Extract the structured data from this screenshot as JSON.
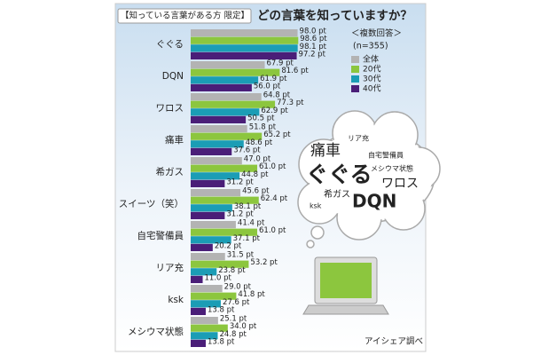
{
  "chart_data": {
    "type": "bar",
    "orientation": "horizontal",
    "subtitle": "【知っている言葉がある方 限定】",
    "title": "どの言葉を知っていますか？",
    "notes": [
      "＜複数回答＞",
      "(n=355)"
    ],
    "source": "アイシェア調べ",
    "categories": [
      "ぐぐる",
      "DQN",
      "ワロス",
      "痛車",
      "希ガス",
      "スイーツ（笑）",
      "自宅警備員",
      "リア充",
      "ksk",
      "メシウマ状態"
    ],
    "xlim": [
      0,
      100
    ],
    "legend": "right",
    "series": [
      {
        "name": "全体",
        "color": "#b3b3b3",
        "values": [
          98.0,
          67.9,
          64.8,
          51.8,
          47.0,
          45.6,
          41.4,
          31.5,
          29.0,
          25.1
        ],
        "value_labels": [
          "98.0 pt",
          "67.9 pt",
          "64.8 pt",
          "51.8 pt",
          "47.0 pt",
          "45.6 pt",
          "41.4 pt",
          "31.5 pt",
          "29.0 pt",
          "25.1 pt"
        ]
      },
      {
        "name": "20代",
        "color": "#8cc63e",
        "values": [
          98.6,
          81.6,
          77.3,
          65.2,
          61.0,
          62.4,
          61.0,
          53.2,
          41.8,
          34.0
        ],
        "value_labels": [
          "98.6 pt",
          "81.6 pt",
          "77.3 pt",
          "65.2 pt",
          "61.0 pt",
          "62.4 pt",
          "61.0 pt",
          "53.2 pt",
          "41.8 pt",
          "34.0 pt"
        ]
      },
      {
        "name": "30代",
        "color": "#1b9db5",
        "values": [
          98.1,
          61.9,
          62.9,
          48.6,
          44.8,
          38.1,
          37.1,
          23.8,
          27.6,
          24.8
        ],
        "value_labels": [
          "98.1 pt",
          "61.9 pt",
          "62.9 pt",
          "48.6 pt",
          "44.8 pt",
          "38.1 pt",
          "37.1 pt",
          "23.8 pt",
          "27.6 pt",
          "24.8 pt"
        ]
      },
      {
        "name": "40代",
        "color": "#4a1e78",
        "values": [
          97.2,
          56.0,
          50.5,
          37.6,
          31.2,
          31.2,
          20.2,
          11.0,
          13.8,
          13.8
        ],
        "value_labels": [
          "97.2 pt",
          "56.0 pt",
          "50.5 pt",
          "37.6 pt",
          "31.2 pt",
          "31.2 pt",
          "20.2 pt",
          "11.0 pt",
          "13.8 pt",
          "13.8 pt"
        ]
      }
    ]
  },
  "cloud_words": [
    "痛車",
    "リア充",
    "自宅警備員",
    "ぐぐる",
    "メシウマ状態",
    "ワロス",
    "希ガス",
    "ksk",
    "DQN"
  ]
}
